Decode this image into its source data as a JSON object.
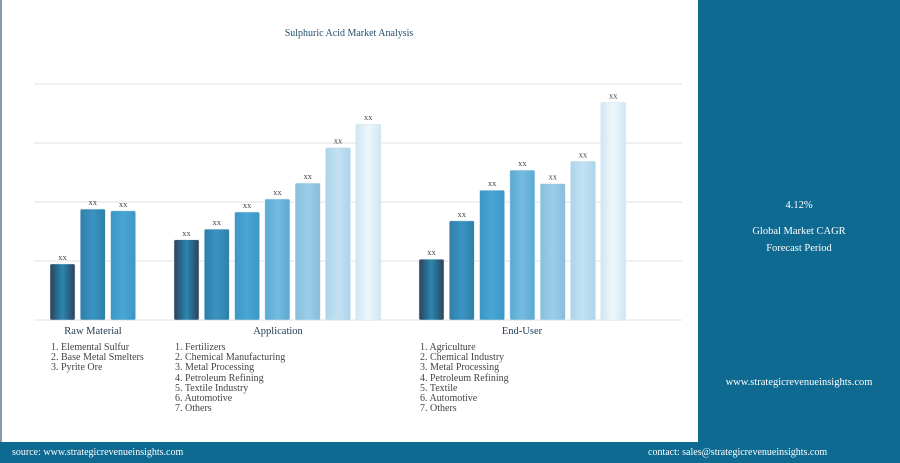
{
  "chart_data": {
    "type": "bar",
    "title": "Sulphuric Acid Market Analysis",
    "ylim": [
      0,
      4
    ],
    "grid": true,
    "groups": [
      {
        "name": "Raw Material",
        "items": [
          "1. Elemental Sulfur",
          "2. Base Metal Smelters",
          "3. Pyrite Ore"
        ],
        "values": [
          0.95,
          1.88,
          1.85
        ],
        "labels": [
          "xx",
          "xx",
          "xx"
        ]
      },
      {
        "name": "Application",
        "items": [
          "1. Fertilizers",
          "2. Chemical Manufacturing",
          "3. Metal Processing",
          "4. Petroleum Refining",
          "5. Textile Industry",
          "6. Automotive",
          "7. Others"
        ],
        "values": [
          1.36,
          1.54,
          1.83,
          2.05,
          2.32,
          2.92,
          3.32
        ],
        "labels": [
          "xx",
          "xx",
          "xx",
          "xx",
          "xx",
          "xx",
          "xx"
        ]
      },
      {
        "name": "End-User",
        "items": [
          "1. Agriculture",
          "2. Chemical Industry",
          "3. Metal Processing",
          "4. Petroleum Refining",
          "5. Textile",
          "6. Automotive",
          "7. Others"
        ],
        "values": [
          1.03,
          1.68,
          2.2,
          2.54,
          2.31,
          2.69,
          3.69
        ],
        "labels": [
          "xx",
          "xx",
          "xx",
          "xx",
          "xx",
          "xx",
          "xx"
        ]
      }
    ],
    "colors": [
      "#2a86b3",
      "#3a93c2",
      "#4aa5d4",
      "#74bbdf",
      "#9ccde8",
      "#c3e2f2",
      "#eef7fc"
    ]
  },
  "side": {
    "cagr": "4.12%",
    "cagr_label": "Global Market CAGR",
    "period": "Forecast Period",
    "website": "www.strategicrevenueinsights.com"
  },
  "footer": {
    "source": "source: www.strategicrevenueinsights.com",
    "contact": "contact: sales@strategicrevenueinsights.com"
  }
}
